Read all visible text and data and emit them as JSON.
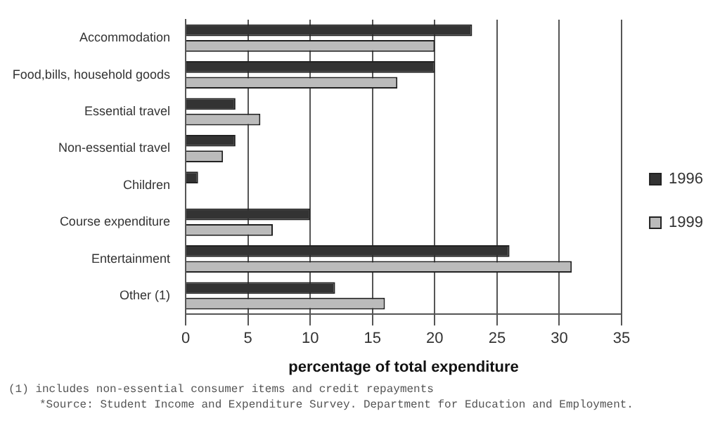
{
  "chart_data": {
    "type": "bar",
    "orientation": "horizontal",
    "xlabel": "percentage of total expenditure",
    "categories": [
      "Accommodation",
      "Food,bills, household goods",
      "Essential travel",
      "Non-essential travel",
      "Children",
      "Course expenditure",
      "Entertainment",
      "Other (1)"
    ],
    "series": [
      {
        "name": "1996",
        "color": "#333333",
        "values": [
          23,
          20,
          4,
          4,
          1,
          10,
          26,
          12
        ]
      },
      {
        "name": "1999",
        "color": "#bbbbbb",
        "values": [
          20,
          17,
          6,
          3,
          0,
          7,
          31,
          16
        ]
      }
    ],
    "xlim": [
      0,
      35
    ],
    "xticks": [
      0,
      5,
      10,
      15,
      20,
      25,
      30,
      35
    ],
    "grid": "x",
    "legend": "right",
    "annotations": [
      "(1) includes non-essential consumer items and credit repayments",
      "*Source: Student Income and Expenditure Survey. Department for Education and Employment."
    ]
  }
}
